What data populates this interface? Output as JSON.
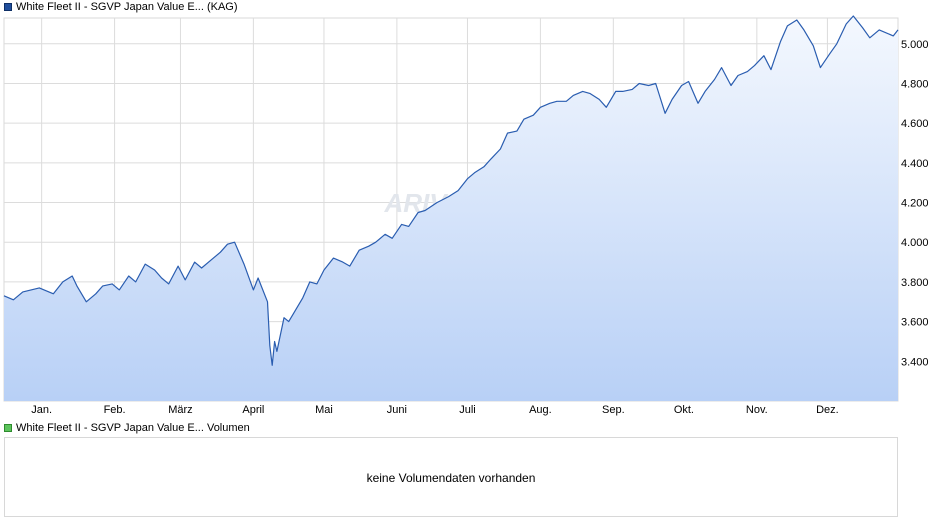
{
  "legend": {
    "price_label": "White Fleet II - SGVP Japan Value E... (KAG)",
    "volume_label": "White Fleet II - SGVP Japan Value E... Volumen"
  },
  "watermark": "ARIVA",
  "volume": {
    "message": "keine Volumendaten vorhanden"
  },
  "colors": {
    "line": "#2a5db0",
    "fill_top": "#f4f8fe",
    "fill_bottom": "#b8d0f6",
    "grid": "#dcdcdc"
  },
  "chart_data": {
    "type": "area",
    "title": "",
    "xlabel": "",
    "ylabel": "",
    "x_tick_labels": [
      "Jan.",
      "Feb.",
      "März",
      "April",
      "Mai",
      "Juni",
      "Juli",
      "Aug.",
      "Sep.",
      "Okt.",
      "Nov.",
      "Dez."
    ],
    "y_ticks": [
      3400,
      3600,
      3800,
      4000,
      4200,
      4400,
      4600,
      4800,
      5000
    ],
    "y_tick_labels": [
      "3.400",
      "3.600",
      "3.800",
      "4.000",
      "4.200",
      "4.400",
      "4.600",
      "4.800",
      "5.000"
    ],
    "ylim": [
      3200,
      5130
    ],
    "grid": true,
    "legend": "top-left",
    "series": [
      {
        "x": [
          "2024-12-16",
          "2024-12-20",
          "2024-12-24",
          "2024-12-31",
          "2025-01-06",
          "2025-01-10",
          "2025-01-14",
          "2025-01-16",
          "2025-01-20",
          "2025-01-24",
          "2025-01-27",
          "2025-01-31",
          "2025-02-03",
          "2025-02-07",
          "2025-02-10",
          "2025-02-14",
          "2025-02-18",
          "2025-02-21",
          "2025-02-24",
          "2025-02-28",
          "2025-03-03",
          "2025-03-07",
          "2025-03-10",
          "2025-03-14",
          "2025-03-18",
          "2025-03-21",
          "2025-03-24",
          "2025-03-28",
          "2025-04-01",
          "2025-04-03",
          "2025-04-07",
          "2025-04-08",
          "2025-04-09",
          "2025-04-10",
          "2025-04-11",
          "2025-04-14",
          "2025-04-16",
          "2025-04-18",
          "2025-04-22",
          "2025-04-25",
          "2025-04-28",
          "2025-05-01",
          "2025-05-05",
          "2025-05-09",
          "2025-05-12",
          "2025-05-16",
          "2025-05-20",
          "2025-05-23",
          "2025-05-27",
          "2025-05-30",
          "2025-06-03",
          "2025-06-06",
          "2025-06-10",
          "2025-06-13",
          "2025-06-18",
          "2025-06-23",
          "2025-06-27",
          "2025-07-01",
          "2025-07-04",
          "2025-07-08",
          "2025-07-11",
          "2025-07-15",
          "2025-07-18",
          "2025-07-22",
          "2025-07-25",
          "2025-07-29",
          "2025-08-01",
          "2025-08-05",
          "2025-08-08",
          "2025-08-12",
          "2025-08-15",
          "2025-08-19",
          "2025-08-22",
          "2025-08-26",
          "2025-08-29",
          "2025-09-02",
          "2025-09-05",
          "2025-09-09",
          "2025-09-12",
          "2025-09-16",
          "2025-09-19",
          "2025-09-23",
          "2025-09-26",
          "2025-09-30",
          "2025-10-03",
          "2025-10-07",
          "2025-10-10",
          "2025-10-14",
          "2025-10-17",
          "2025-10-21",
          "2025-10-24",
          "2025-10-28",
          "2025-10-31",
          "2025-11-04",
          "2025-11-07",
          "2025-11-11",
          "2025-11-14",
          "2025-11-18",
          "2025-11-21",
          "2025-11-25",
          "2025-11-28",
          "2025-12-02",
          "2025-12-05",
          "2025-12-09",
          "2025-12-12",
          "2025-12-16",
          "2025-12-19",
          "2025-12-23",
          "2025-12-29",
          "2025-12-31"
        ],
        "y": [
          3730,
          3710,
          3750,
          3770,
          3740,
          3800,
          3830,
          3780,
          3700,
          3740,
          3780,
          3790,
          3760,
          3830,
          3800,
          3890,
          3860,
          3820,
          3790,
          3880,
          3810,
          3900,
          3870,
          3910,
          3950,
          3990,
          4000,
          3890,
          3760,
          3820,
          3700,
          3480,
          3380,
          3500,
          3450,
          3620,
          3600,
          3640,
          3720,
          3800,
          3790,
          3860,
          3920,
          3900,
          3880,
          3960,
          3980,
          4000,
          4040,
          4020,
          4090,
          4080,
          4150,
          4160,
          4200,
          4230,
          4260,
          4320,
          4350,
          4380,
          4420,
          4470,
          4550,
          4560,
          4620,
          4640,
          4680,
          4700,
          4710,
          4710,
          4740,
          4760,
          4750,
          4720,
          4680,
          4760,
          4760,
          4770,
          4800,
          4790,
          4800,
          4650,
          4720,
          4790,
          4810,
          4700,
          4760,
          4820,
          4880,
          4790,
          4840,
          4860,
          4890,
          4940,
          4870,
          5010,
          5090,
          5120,
          5070,
          4990,
          4880,
          4950,
          5000,
          5100,
          5140,
          5080,
          5030,
          5070,
          5040,
          5070
        ]
      }
    ]
  }
}
